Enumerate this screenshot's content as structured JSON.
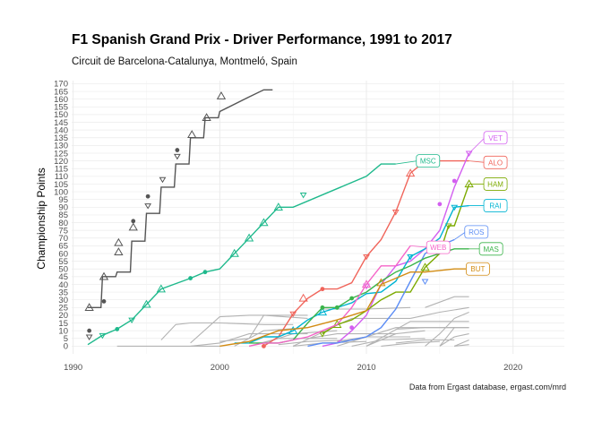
{
  "title": "F1 Spanish Grand Prix - Driver Performance, 1991 to 2017",
  "subtitle": "Circuit de Barcelona-Catalunya, Montmeló, Spain",
  "caption": "Data from Ergast database, ergast.com/mrd",
  "chart_data": {
    "type": "line",
    "title": "F1 Spanish Grand Prix - Driver Performance, 1991 to 2017",
    "subtitle": "Circuit de Barcelona-Catalunya, Montmeló, Spain",
    "xlabel": "",
    "ylabel": "Championship Points",
    "xlim": [
      1989.9,
      2023.5
    ],
    "ylim": [
      -5,
      172
    ],
    "xticks": [
      1990,
      2000,
      2010,
      2020
    ],
    "yticks": [
      0,
      5,
      10,
      15,
      20,
      25,
      30,
      35,
      40,
      45,
      50,
      55,
      60,
      65,
      70,
      75,
      80,
      85,
      90,
      95,
      100,
      105,
      110,
      115,
      120,
      125,
      130,
      135,
      140,
      145,
      150,
      155,
      160,
      165,
      170
    ],
    "grid": true,
    "legend": "none",
    "colors": {
      "black": "#555555",
      "MSC": "#1fb98c",
      "ALO": "#f0645a",
      "VET": "#d35ff0",
      "HAM": "#7caa00",
      "RAI": "#00b4d2",
      "ROS": "#5a8cf5",
      "MAS": "#3cb44b",
      "WEB": "#f564c8",
      "BUT": "#d28c14",
      "grey": "#b3b3b3"
    },
    "highlighted_series": [
      {
        "name": "",
        "key": "black",
        "x": [
          1991,
          1991.9,
          1992,
          1992.9,
          1993,
          1993.9,
          1994,
          1994.9,
          1995,
          1995.9,
          1996,
          1996.9,
          1997,
          1997.9,
          1998,
          1998.9,
          1999,
          1999.9,
          2000,
          2001.9,
          2003,
          2003.6
        ],
        "y": [
          25,
          25,
          45,
          45,
          48,
          48,
          68,
          68,
          86,
          86,
          103,
          103,
          118,
          118,
          135,
          135,
          148,
          148,
          152,
          161,
          166,
          166
        ],
        "markers": [
          {
            "x": 1991.1,
            "y": 25,
            "m": "up"
          },
          {
            "x": 1991.1,
            "y": 10,
            "m": "circle"
          },
          {
            "x": 1991.1,
            "y": 6,
            "m": "down"
          },
          {
            "x": 1992.1,
            "y": 45,
            "m": "up"
          },
          {
            "x": 1992.1,
            "y": 29,
            "m": "circle"
          },
          {
            "x": 1993.1,
            "y": 67,
            "m": "up"
          },
          {
            "x": 1993.1,
            "y": 61,
            "m": "up"
          },
          {
            "x": 1994.1,
            "y": 81,
            "m": "circle"
          },
          {
            "x": 1994.1,
            "y": 77,
            "m": "up"
          },
          {
            "x": 1995.1,
            "y": 97,
            "m": "circle"
          },
          {
            "x": 1995.1,
            "y": 91,
            "m": "down"
          },
          {
            "x": 1996.1,
            "y": 108,
            "m": "down"
          },
          {
            "x": 1997.1,
            "y": 127,
            "m": "circle"
          },
          {
            "x": 1997.1,
            "y": 123,
            "m": "down"
          },
          {
            "x": 1998.1,
            "y": 137,
            "m": "up"
          },
          {
            "x": 1999.1,
            "y": 148,
            "m": "up"
          },
          {
            "x": 2000.1,
            "y": 162,
            "m": "up"
          }
        ]
      },
      {
        "name": "MSC",
        "key": "MSC",
        "x": [
          1991,
          1992,
          1993,
          1994,
          1995,
          1996,
          1998,
          1999,
          2000,
          2001,
          2002,
          2003,
          2004,
          2005,
          2010,
          2011,
          2012
        ],
        "y": [
          1,
          7,
          11,
          17,
          27,
          37,
          44,
          48,
          50,
          60,
          70,
          80,
          90,
          90,
          110,
          118,
          118
        ],
        "markers": [
          {
            "x": 1992,
            "y": 7,
            "m": "down"
          },
          {
            "x": 1993,
            "y": 11,
            "m": "circle"
          },
          {
            "x": 1994,
            "y": 17,
            "m": "down"
          },
          {
            "x": 1995,
            "y": 27,
            "m": "up"
          },
          {
            "x": 1996,
            "y": 37,
            "m": "up"
          },
          {
            "x": 1998,
            "y": 44,
            "m": "circle"
          },
          {
            "x": 1999,
            "y": 48,
            "m": "circle"
          },
          {
            "x": 2001,
            "y": 60,
            "m": "up"
          },
          {
            "x": 2002,
            "y": 70,
            "m": "up"
          },
          {
            "x": 2003,
            "y": 80,
            "m": "up"
          },
          {
            "x": 2004,
            "y": 90,
            "m": "up"
          },
          {
            "x": 2005.7,
            "y": 98,
            "m": "down"
          }
        ]
      },
      {
        "name": "ALO",
        "key": "ALO",
        "x": [
          2003,
          2004,
          2005,
          2006,
          2007,
          2008,
          2009,
          2010,
          2011,
          2012,
          2013,
          2014,
          2017
        ],
        "y": [
          0,
          6,
          21,
          31,
          37,
          37,
          41,
          58,
          69,
          87,
          112,
          120,
          120
        ],
        "markers": [
          {
            "x": 2003,
            "y": 0,
            "m": "circle"
          },
          {
            "x": 2005,
            "y": 21,
            "m": "down"
          },
          {
            "x": 2005.7,
            "y": 31,
            "m": "up"
          },
          {
            "x": 2007,
            "y": 37,
            "m": "circle"
          },
          {
            "x": 2010,
            "y": 58,
            "m": "down"
          },
          {
            "x": 2012,
            "y": 87,
            "m": "down"
          },
          {
            "x": 2013,
            "y": 112,
            "m": "up"
          }
        ]
      },
      {
        "name": "VET",
        "key": "VET",
        "x": [
          2007,
          2008,
          2009,
          2010,
          2011,
          2012,
          2013,
          2014,
          2015,
          2016,
          2017
        ],
        "y": [
          0,
          2,
          10,
          20,
          40,
          52,
          55,
          63,
          75,
          103,
          125
        ],
        "markers": [
          {
            "x": 2009,
            "y": 12,
            "m": "circle"
          },
          {
            "x": 2010,
            "y": 39,
            "m": "down"
          },
          {
            "x": 2015,
            "y": 92,
            "m": "circle"
          },
          {
            "x": 2016,
            "y": 107,
            "m": "circle"
          },
          {
            "x": 2017,
            "y": 125,
            "m": "down"
          }
        ]
      },
      {
        "name": "HAM",
        "key": "HAM",
        "x": [
          2007,
          2008,
          2009,
          2010,
          2011,
          2012,
          2013,
          2014,
          2015,
          2015.6,
          2016,
          2017
        ],
        "y": [
          8,
          14,
          17,
          23,
          30,
          35,
          35,
          51,
          60,
          78,
          78,
          105
        ],
        "markers": [
          {
            "x": 2007,
            "y": 8,
            "m": "down"
          },
          {
            "x": 2008,
            "y": 14,
            "m": "up"
          },
          {
            "x": 2014,
            "y": 51,
            "m": "up"
          },
          {
            "x": 2015.6,
            "y": 78,
            "m": "down"
          },
          {
            "x": 2017,
            "y": 105,
            "m": "up"
          }
        ]
      },
      {
        "name": "RAI",
        "key": "RAI",
        "x": [
          2001,
          2002,
          2003,
          2004,
          2005,
          2006,
          2007,
          2008,
          2009,
          2010,
          2011,
          2012,
          2013,
          2014,
          2015,
          2016,
          2017
        ],
        "y": [
          2,
          2,
          6,
          6,
          10,
          17,
          22,
          25,
          28,
          34,
          35,
          42,
          58,
          63,
          70,
          90,
          91
        ],
        "markers": [
          {
            "x": 2005,
            "y": 10,
            "m": "up"
          },
          {
            "x": 2007,
            "y": 22,
            "m": "up"
          },
          {
            "x": 2008,
            "y": 25,
            "m": "circle"
          },
          {
            "x": 2013,
            "y": 58,
            "m": "down"
          },
          {
            "x": 2016,
            "y": 90,
            "m": "down"
          }
        ]
      },
      {
        "name": "ROS",
        "key": "ROS",
        "x": [
          2006,
          2007,
          2008,
          2009,
          2010,
          2011,
          2012,
          2013,
          2014,
          2015,
          2016
        ],
        "y": [
          0,
          2,
          2,
          4,
          6,
          12,
          24,
          42,
          60,
          65,
          69
        ],
        "markers": [
          {
            "x": 2014,
            "y": 42,
            "m": "down"
          }
        ]
      },
      {
        "name": "MAS",
        "key": "MAS",
        "x": [
          2002,
          2004,
          2005,
          2006,
          2007,
          2008,
          2009,
          2010,
          2011,
          2012,
          2013,
          2014,
          2015,
          2016,
          2017
        ],
        "y": [
          2,
          2,
          4,
          15,
          25,
          25,
          31,
          35,
          42,
          48,
          52,
          57,
          60,
          63,
          63
        ],
        "markers": [
          {
            "x": 2007,
            "y": 25,
            "m": "circle"
          },
          {
            "x": 2008,
            "y": 25,
            "m": "circle"
          },
          {
            "x": 2009,
            "y": 31,
            "m": "circle"
          }
        ]
      },
      {
        "name": "WEB",
        "key": "WEB",
        "x": [
          2002,
          2003,
          2004,
          2005,
          2006,
          2007,
          2008,
          2009,
          2010,
          2011,
          2012,
          2013
        ],
        "y": [
          0,
          2,
          2,
          4,
          6,
          10,
          14,
          25,
          40,
          52,
          52,
          65
        ],
        "markers": [
          {
            "x": 2010,
            "y": 40,
            "m": "up"
          }
        ]
      },
      {
        "name": "BUT",
        "key": "BUT",
        "x": [
          2000,
          2002,
          2004,
          2006,
          2008,
          2009,
          2010,
          2011,
          2012,
          2013,
          2014,
          2015,
          2016,
          2017
        ],
        "y": [
          0,
          3,
          10,
          12,
          17,
          20,
          23,
          40,
          44,
          48,
          48,
          49,
          50,
          50
        ],
        "markers": [
          {
            "x": 2011,
            "y": 41,
            "m": "up"
          }
        ]
      }
    ],
    "grey_series": [
      {
        "x": [
          1993,
          1995,
          2000
        ],
        "y": [
          0,
          0,
          0
        ]
      },
      {
        "x": [
          1996,
          1997,
          1998,
          2000,
          2003,
          2005
        ],
        "y": [
          4,
          14,
          15,
          15,
          14,
          14
        ]
      },
      {
        "x": [
          1998,
          2000,
          2002,
          2004,
          2006
        ],
        "y": [
          2,
          19,
          20,
          20,
          20
        ]
      },
      {
        "x": [
          1998,
          2000,
          2002,
          2006
        ],
        "y": [
          0,
          2,
          8,
          8
        ]
      },
      {
        "x": [
          2000,
          2002,
          2003,
          2006
        ],
        "y": [
          3,
          5,
          20,
          18
        ]
      },
      {
        "x": [
          2001,
          2003,
          2006
        ],
        "y": [
          0,
          10,
          12
        ]
      },
      {
        "x": [
          2002,
          2004,
          2008
        ],
        "y": [
          0,
          5,
          5
        ]
      },
      {
        "x": [
          2003,
          2005,
          2008
        ],
        "y": [
          2,
          8,
          10
        ]
      },
      {
        "x": [
          2004,
          2006,
          2009
        ],
        "y": [
          1,
          3,
          4
        ]
      },
      {
        "x": [
          2005,
          2007,
          2010
        ],
        "y": [
          0,
          2,
          3
        ]
      },
      {
        "x": [
          2006,
          2008,
          2012
        ],
        "y": [
          5,
          8,
          8
        ]
      },
      {
        "x": [
          2007,
          2010,
          2013
        ],
        "y": [
          24,
          24,
          25
        ]
      },
      {
        "x": [
          2008,
          2010,
          2013
        ],
        "y": [
          3,
          6,
          6
        ]
      },
      {
        "x": [
          2009,
          2011,
          2014
        ],
        "y": [
          0,
          4,
          5
        ]
      },
      {
        "x": [
          2010,
          2012,
          2014
        ],
        "y": [
          0,
          8,
          10
        ]
      },
      {
        "x": [
          2011,
          2013,
          2015
        ],
        "y": [
          0,
          2,
          3
        ]
      },
      {
        "x": [
          2012,
          2014,
          2016
        ],
        "y": [
          2,
          4,
          4
        ]
      },
      {
        "x": [
          2012,
          2014,
          2017
        ],
        "y": [
          11,
          12,
          12
        ]
      },
      {
        "x": [
          2013,
          2015,
          2017
        ],
        "y": [
          18,
          22,
          25
        ]
      },
      {
        "x": [
          2014,
          2016,
          2017
        ],
        "y": [
          25,
          32,
          32
        ]
      },
      {
        "x": [
          2014,
          2015,
          2016,
          2017
        ],
        "y": [
          0,
          8,
          18,
          22
        ]
      },
      {
        "x": [
          2015,
          2016,
          2017
        ],
        "y": [
          0,
          12,
          12
        ]
      },
      {
        "x": [
          2015,
          2016,
          2017
        ],
        "y": [
          0,
          6,
          8
        ]
      },
      {
        "x": [
          2016,
          2017
        ],
        "y": [
          0,
          4
        ]
      },
      {
        "x": [
          2016,
          2017
        ],
        "y": [
          0,
          1
        ]
      },
      {
        "x": [
          2008,
          2012,
          2016
        ],
        "y": [
          0,
          12,
          12
        ]
      },
      {
        "x": [
          2010,
          2013,
          2017
        ],
        "y": [
          0,
          16,
          16
        ]
      },
      {
        "x": [
          2005,
          2009,
          2013
        ],
        "y": [
          0,
          18,
          18
        ]
      }
    ],
    "labels": [
      {
        "text": "VET",
        "key": "VET",
        "x": 2018.8,
        "y": 135
      },
      {
        "text": "ALO",
        "key": "ALO",
        "x": 2018.8,
        "y": 119
      },
      {
        "text": "HAM",
        "key": "HAM",
        "x": 2018.8,
        "y": 105
      },
      {
        "text": "RAI",
        "key": "RAI",
        "x": 2018.8,
        "y": 91
      },
      {
        "text": "ROS",
        "key": "ROS",
        "x": 2017.5,
        "y": 74
      },
      {
        "text": "MAS",
        "key": "MAS",
        "x": 2018.5,
        "y": 63
      },
      {
        "text": "BUT",
        "key": "BUT",
        "x": 2017.6,
        "y": 50
      },
      {
        "text": "MSC",
        "key": "MSC",
        "x": 2014.2,
        "y": 120
      },
      {
        "text": "WEB",
        "key": "WEB",
        "x": 2014.9,
        "y": 64
      }
    ]
  }
}
